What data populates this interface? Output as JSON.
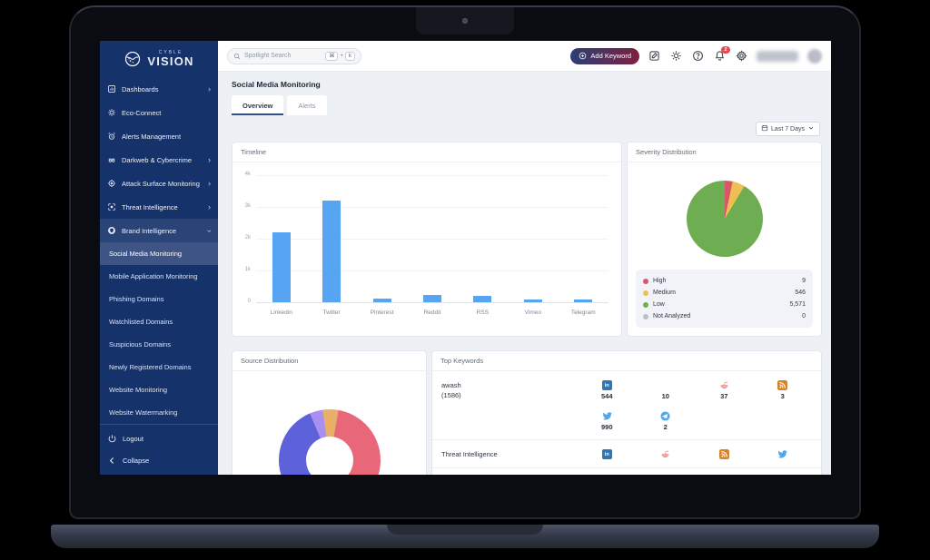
{
  "brand": {
    "small": "CYBLE",
    "large": "VISION"
  },
  "theme": {
    "sidebar_bg": "#16326b",
    "content_bg": "#edf0f5",
    "accent_gradient": [
      "#2b3f76",
      "#7d2040"
    ],
    "bar_blue": "#57a4f2",
    "badge_red": "#e5484d",
    "severity_colors": {
      "high": "#d9566a",
      "medium": "#eec052",
      "low": "#6fad52",
      "not_analyzed": "#b9bfc9"
    }
  },
  "topbar": {
    "search_placeholder": "Spotlight Search",
    "search_keys": [
      "⌘",
      "k"
    ],
    "add_keyword_label": "Add Keyword",
    "notification_count": "2",
    "icons": [
      "whats-new-icon",
      "theme-icon",
      "help-icon",
      "bell-icon",
      "gear-icon"
    ]
  },
  "sidebar": {
    "items": [
      {
        "label": "Dashboards",
        "icon": "dashboard-icon",
        "chevron": "right"
      },
      {
        "label": "Eco-Connect",
        "icon": "eco-connect-icon"
      },
      {
        "label": "Alerts Management",
        "icon": "alerts-icon"
      },
      {
        "label": "Darkweb & Cybercrime",
        "icon": "darkweb-icon",
        "chevron": "right"
      },
      {
        "label": "Attack Surface Monitoring",
        "icon": "attack-surface-icon",
        "chevron": "right"
      },
      {
        "label": "Threat Intelligence",
        "icon": "threat-intel-icon",
        "chevron": "right"
      },
      {
        "label": "Brand Intelligence",
        "icon": "brand-intel-icon",
        "chevron": "down",
        "expanded": true
      }
    ],
    "subitems": [
      {
        "label": "Social Media Monitoring",
        "active": true
      },
      {
        "label": "Mobile Application Monitoring"
      },
      {
        "label": "Phishing Domains"
      },
      {
        "label": "Watchlisted Domains"
      },
      {
        "label": "Suspicious Domains"
      },
      {
        "label": "Newly Registered Domains"
      },
      {
        "label": "Website Monitoring"
      },
      {
        "label": "Website Watermarking"
      }
    ],
    "footer": [
      {
        "label": "Logout",
        "icon": "power-icon"
      },
      {
        "label": "Collapse",
        "icon": "collapse-icon"
      }
    ]
  },
  "page": {
    "title": "Social Media Monitoring",
    "tabs": [
      {
        "label": "Overview",
        "active": true
      },
      {
        "label": "Alerts"
      }
    ],
    "date_filter": "Last 7 Days"
  },
  "panels": {
    "timeline": {
      "title": "Timeline"
    },
    "severity": {
      "title": "Severity Distribution"
    },
    "source": {
      "title": "Source Distribution"
    },
    "keywords": {
      "title": "Top Keywords"
    }
  },
  "chart_data": [
    {
      "name": "timeline",
      "type": "bar",
      "title": "Timeline",
      "categories": [
        "Linkedin",
        "Twitter",
        "Pinterest",
        "Reddit",
        "RSS",
        "Vimeo",
        "Telegram"
      ],
      "values": [
        2200,
        3200,
        110,
        230,
        200,
        90,
        90
      ],
      "xlabel": "",
      "ylabel": "",
      "yticks": [
        "0",
        "1k",
        "2k",
        "3k",
        "4k"
      ],
      "ylim": [
        0,
        4000
      ],
      "grid": true,
      "bar_color": "#57a4f2"
    },
    {
      "name": "severity_distribution",
      "type": "pie",
      "title": "Severity Distribution",
      "legend_position": "bottom",
      "slices": [
        {
          "label": "High",
          "value": 9,
          "display": "9",
          "color": "#d9566a",
          "deg": [
            0,
            12
          ]
        },
        {
          "label": "Medium",
          "value": 546,
          "display": "546",
          "color": "#eec052",
          "deg": [
            12,
            31
          ]
        },
        {
          "label": "Low",
          "value": 5571,
          "display": "5,571",
          "color": "#6fad52",
          "deg": [
            31,
            360
          ]
        },
        {
          "label": "Not Analyzed",
          "value": 0,
          "display": "0",
          "color": "#b9bfc9"
        }
      ]
    },
    {
      "name": "source_distribution",
      "type": "donut",
      "title": "Source Distribution",
      "legend_position": "clipped-offscreen",
      "slices": [
        {
          "label": "segment-orange",
          "percent": 2.8,
          "color": "#e7af67",
          "deg": [
            0,
            10
          ]
        },
        {
          "label": "segment-red",
          "percent": 41.7,
          "color": "#e8687a",
          "deg": [
            10,
            160
          ]
        },
        {
          "label": "segment-indigo",
          "percent": 49.2,
          "color": "#5e62da",
          "deg": [
            160,
            337
          ]
        },
        {
          "label": "segment-purple",
          "percent": 4.1,
          "color": "#a98ff2",
          "deg": [
            337,
            352
          ]
        },
        {
          "label": "segment-orange",
          "percent": 2.2,
          "color": "#e7af67",
          "deg": [
            352,
            360
          ]
        }
      ]
    }
  ],
  "keywords_table": {
    "rows": [
      {
        "keyword": "awash",
        "sub": "(1586)",
        "columns": [
          [
            {
              "icon": "linkedin-icon",
              "value": "544"
            },
            {
              "icon": "twitter-icon",
              "value": "990"
            }
          ],
          [
            {
              "icon": "none",
              "value": "10"
            },
            {
              "icon": "telegram-icon",
              "value": "2"
            }
          ],
          [
            {
              "icon": "reddit-icon",
              "value": "37"
            }
          ],
          [
            {
              "icon": "rss-icon",
              "value": "3"
            }
          ]
        ]
      },
      {
        "keyword": "Threat Intelligence",
        "sub": "",
        "columns": [
          [
            {
              "icon": "linkedin-icon",
              "value": ""
            }
          ],
          [
            {
              "icon": "reddit-icon",
              "value": ""
            }
          ],
          [
            {
              "icon": "rss-icon",
              "value": ""
            }
          ],
          [
            {
              "icon": "twitter-icon",
              "value": ""
            }
          ]
        ]
      }
    ]
  }
}
